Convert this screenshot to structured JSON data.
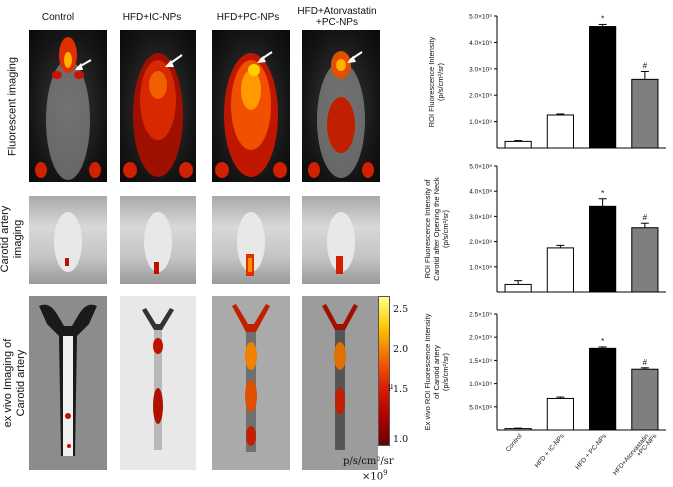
{
  "figure": {
    "column_headers": [
      "Control",
      "HFD+IC-NPs",
      "HFD+PC-NPs",
      "HFD+Atorvastatin",
      "+PC-NPs"
    ],
    "row_labels": {
      "fluorescent": "Fluorescent imaging",
      "carotid_line1": "Carotid artery",
      "carotid_line2": "imaging",
      "exvivo_line1": "ex vivo Imaging of",
      "exvivo_line2": "Carotid artery"
    },
    "colorbar": {
      "ticks": [
        "2.5",
        "2.0",
        "1.5",
        "1.0"
      ],
      "unit": "p/s/cm²/sr",
      "multiplier": "×10",
      "exponent": "9",
      "mark": "µ"
    }
  },
  "chart_data": [
    {
      "type": "bar",
      "categories": [
        "Control",
        "HFD + IC-NPs",
        "HFD + PC-NPs",
        "HFD+Atorvastatin +PC-NPs"
      ],
      "values": [
        0.25,
        1.25,
        4.6,
        2.6
      ],
      "errors": [
        0.03,
        0.04,
        0.08,
        0.3
      ],
      "ylabel_line1": "ROI Fluorescence Intensity",
      "ylabel_line2": "(p/s/cm²/sr)",
      "ylim": [
        0,
        5
      ],
      "ticks": [
        "1.0×10⁹",
        "2.0×10⁹",
        "3.0×10⁹",
        "4.0×10⁹",
        "5.0×10⁹"
      ],
      "tick_values": [
        1,
        2,
        3,
        4,
        5
      ],
      "significance": [
        "",
        "",
        "*",
        "#"
      ],
      "fills": [
        "#ffffff",
        "#ffffff",
        "#000000",
        "#7f7f7f"
      ]
    },
    {
      "type": "bar",
      "categories": [
        "Control",
        "HFD + IC-NPs",
        "HFD + PC-NPs",
        "HFD+Atorvastatin +PC-NPs"
      ],
      "values": [
        0.3,
        1.75,
        3.4,
        2.55
      ],
      "errors": [
        0.15,
        0.1,
        0.3,
        0.18
      ],
      "ylabel_line1": "ROI Fluorescence Intensity of",
      "ylabel_line2": "Carotid after Opening the Neck",
      "ylabel_line3": "(p/s/cm²/sr)",
      "ylim": [
        0,
        5
      ],
      "ticks": [
        "1.0×10⁸",
        "2.0×10⁸",
        "3.0×10⁸",
        "4.0×10⁸",
        "5.0×10⁸"
      ],
      "tick_values": [
        1,
        2,
        3,
        4,
        5
      ],
      "significance": [
        "",
        "",
        "*",
        "#"
      ],
      "fills": [
        "#ffffff",
        "#ffffff",
        "#000000",
        "#7f7f7f"
      ]
    },
    {
      "type": "bar",
      "categories": [
        "Control",
        "HFD + IC-NPs",
        "HFD + PC-NPs",
        "HFD+Atorvastatin +PC-NPs"
      ],
      "values": [
        0.03,
        0.68,
        1.76,
        1.31
      ],
      "errors": [
        0.01,
        0.03,
        0.03,
        0.03
      ],
      "ylabel_line1": "Ex vivo ROI Fluorescence Intensity",
      "ylabel_line2": "of Carotid artery",
      "ylabel_line3": "(p/s/cm²/sr)",
      "ylim": [
        0,
        2.5
      ],
      "ticks": [
        "5.0×10⁸",
        "1.0×10⁹",
        "1.5×10⁹",
        "2.0×10⁹",
        "2.5×10⁹"
      ],
      "tick_values": [
        0.5,
        1.0,
        1.5,
        2.0,
        2.5
      ],
      "significance": [
        "",
        "",
        "*",
        "#"
      ],
      "fills": [
        "#ffffff",
        "#ffffff",
        "#000000",
        "#7f7f7f"
      ]
    }
  ]
}
